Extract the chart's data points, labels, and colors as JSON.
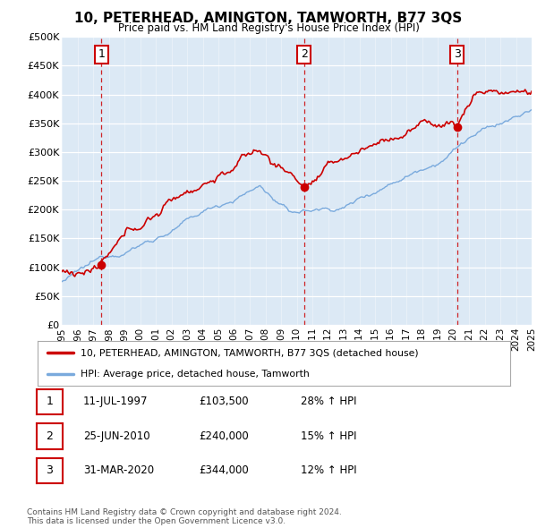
{
  "title": "10, PETERHEAD, AMINGTON, TAMWORTH, B77 3QS",
  "subtitle": "Price paid vs. HM Land Registry's House Price Index (HPI)",
  "ylim": [
    0,
    500000
  ],
  "yticks": [
    0,
    50000,
    100000,
    150000,
    200000,
    250000,
    300000,
    350000,
    400000,
    450000,
    500000
  ],
  "ytick_labels": [
    "£0",
    "£50K",
    "£100K",
    "£150K",
    "£200K",
    "£250K",
    "£300K",
    "£350K",
    "£400K",
    "£450K",
    "£500K"
  ],
  "bg_color": "#dce9f5",
  "line_color_red": "#cc0000",
  "line_color_blue": "#7aaadd",
  "sale_points": [
    {
      "year": 1997.53,
      "price": 103500,
      "label": "1"
    },
    {
      "year": 2010.48,
      "price": 240000,
      "label": "2"
    },
    {
      "year": 2020.25,
      "price": 344000,
      "label": "3"
    }
  ],
  "legend_entries": [
    {
      "label": "10, PETERHEAD, AMINGTON, TAMWORTH, B77 3QS (detached house)",
      "color": "#cc0000"
    },
    {
      "label": "HPI: Average price, detached house, Tamworth",
      "color": "#7aaadd"
    }
  ],
  "table_rows": [
    {
      "num": "1",
      "date": "11-JUL-1997",
      "price": "£103,500",
      "hpi": "28% ↑ HPI"
    },
    {
      "num": "2",
      "date": "25-JUN-2010",
      "price": "£240,000",
      "hpi": "15% ↑ HPI"
    },
    {
      "num": "3",
      "date": "31-MAR-2020",
      "price": "£344,000",
      "hpi": "12% ↑ HPI"
    }
  ],
  "footer": "Contains HM Land Registry data © Crown copyright and database right 2024.\nThis data is licensed under the Open Government Licence v3.0.",
  "xmin": 1995,
  "xmax": 2025
}
